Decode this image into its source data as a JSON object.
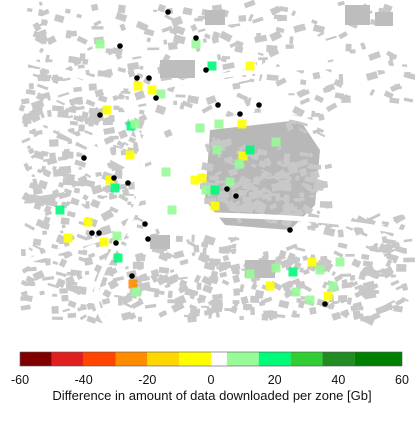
{
  "colorbar": {
    "title": "Difference in amount of data downloaded per zone [Gb]",
    "ticks": [
      "-60",
      "-40",
      "-20",
      "0",
      "20",
      "40",
      "60"
    ],
    "bins": [
      {
        "from": -60,
        "to": -50,
        "color": "#800000"
      },
      {
        "from": -50,
        "to": -40,
        "color": "#e02020"
      },
      {
        "from": -40,
        "to": -30,
        "color": "#ff4500"
      },
      {
        "from": -30,
        "to": -20,
        "color": "#ff8c00"
      },
      {
        "from": -20,
        "to": -10,
        "color": "#ffd700"
      },
      {
        "from": -10,
        "to": 0,
        "color": "#ffff00"
      },
      {
        "from": 0,
        "to": 5,
        "color": "#ffffff"
      },
      {
        "from": 5,
        "to": 15,
        "color": "#98fb98"
      },
      {
        "from": 15,
        "to": 25,
        "color": "#00fa7a"
      },
      {
        "from": 25,
        "to": 35,
        "color": "#32cd32"
      },
      {
        "from": 35,
        "to": 45,
        "color": "#228b22"
      },
      {
        "from": 45,
        "to": 60,
        "color": "#008000"
      }
    ]
  },
  "map_colors": {
    "building": "#c8c8c8",
    "road": "#ffffff",
    "site": "#000000"
  }
}
